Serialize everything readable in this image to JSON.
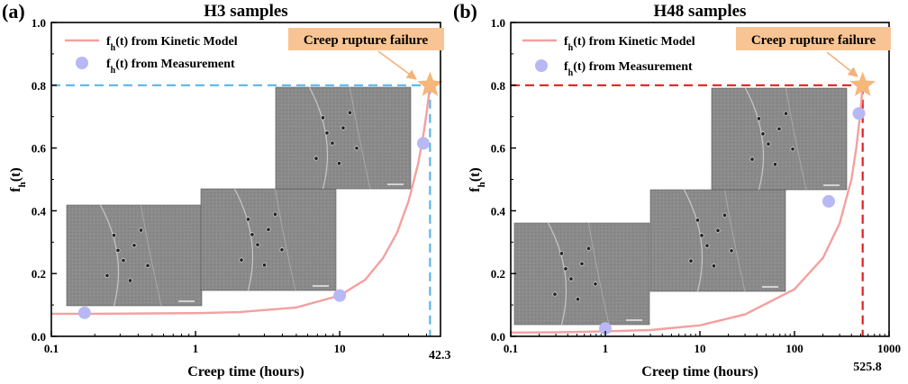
{
  "chart_data": [
    {
      "type": "line",
      "panel_label": "(a)",
      "title": "H3 samples",
      "xlabel": "Creep time (hours)",
      "ylabel_main": "f",
      "ylabel_sub": "h",
      "ylabel_tail": "(t)",
      "xscale": "log",
      "xlim": [
        0.1,
        50
      ],
      "ylim": [
        0.0,
        1.0
      ],
      "xticks": [
        0.1,
        1,
        10
      ],
      "xtick_labels": [
        "0.1",
        "1",
        "10"
      ],
      "yticks": [
        0.0,
        0.2,
        0.4,
        0.6,
        0.8,
        1.0
      ],
      "ytick_labels": [
        "0.0",
        "0.2",
        "0.4",
        "0.6",
        "0.8",
        "1.0"
      ],
      "grid": false,
      "legend_position": "top-left",
      "series": [
        {
          "name": "fh(t) from Kinetic Model",
          "legend_main": "f",
          "legend_sub": "h",
          "legend_tail": "(t) from Kinetic Model",
          "kind": "line",
          "color": "#f4a0a0",
          "x": [
            0.1,
            0.2,
            0.5,
            1,
            2,
            5,
            10,
            15,
            20,
            25,
            30,
            35,
            38,
            40,
            42.3
          ],
          "y": [
            0.072,
            0.072,
            0.073,
            0.074,
            0.077,
            0.092,
            0.13,
            0.18,
            0.25,
            0.33,
            0.43,
            0.55,
            0.64,
            0.71,
            0.8
          ]
        },
        {
          "name": "fh(t) from Measurement",
          "legend_main": "f",
          "legend_sub": "h",
          "legend_tail": "(t) from Measurement",
          "kind": "scatter",
          "color": "#b7b8f4",
          "x": [
            0.17,
            10,
            38
          ],
          "y": [
            0.075,
            0.13,
            0.615
          ]
        }
      ],
      "failure_point": {
        "x": 42.3,
        "y": 0.8,
        "color": "#f7b67a"
      },
      "guide_color": "#5ab6e6",
      "failure_x_label": "42.3",
      "annotation": {
        "text": "Creep rupture failure",
        "fill": "#f8c493"
      }
    },
    {
      "type": "line",
      "panel_label": "(b)",
      "title": "H48 samples",
      "xlabel": "Creep time (hours)",
      "ylabel_main": "f",
      "ylabel_sub": "h",
      "ylabel_tail": "(t)",
      "xscale": "log",
      "xlim": [
        0.1,
        1000
      ],
      "ylim": [
        0.0,
        1.0
      ],
      "xticks": [
        0.1,
        1,
        10,
        100,
        1000
      ],
      "xtick_labels": [
        "0.1",
        "1",
        "10",
        "100",
        "1000"
      ],
      "yticks": [
        0.0,
        0.2,
        0.4,
        0.6,
        0.8,
        1.0
      ],
      "ytick_labels": [
        "0.0",
        "0.2",
        "0.4",
        "0.6",
        "0.8",
        "1.0"
      ],
      "grid": false,
      "legend_position": "top-left",
      "series": [
        {
          "name": "fh(t) from Kinetic Model",
          "legend_main": "f",
          "legend_sub": "h",
          "legend_tail": "(t) from Kinetic Model",
          "kind": "line",
          "color": "#f4a0a0",
          "x": [
            0.1,
            0.3,
            1,
            3,
            10,
            30,
            100,
            200,
            300,
            400,
            450,
            500,
            525.8
          ],
          "y": [
            0.012,
            0.013,
            0.016,
            0.02,
            0.035,
            0.07,
            0.15,
            0.25,
            0.36,
            0.5,
            0.6,
            0.72,
            0.8
          ]
        },
        {
          "name": "fh(t) from Measurement",
          "legend_main": "f",
          "legend_sub": "h",
          "legend_tail": "(t) from Measurement",
          "kind": "scatter",
          "color": "#b7b8f4",
          "x": [
            1,
            230,
            480
          ],
          "y": [
            0.025,
            0.43,
            0.71
          ]
        }
      ],
      "failure_point": {
        "x": 525.8,
        "y": 0.8,
        "color": "#f7b67a"
      },
      "guide_color": "#e02020",
      "failure_x_label": "525.8",
      "annotation": {
        "text": "Creep rupture failure",
        "fill": "#f8c493"
      }
    }
  ]
}
